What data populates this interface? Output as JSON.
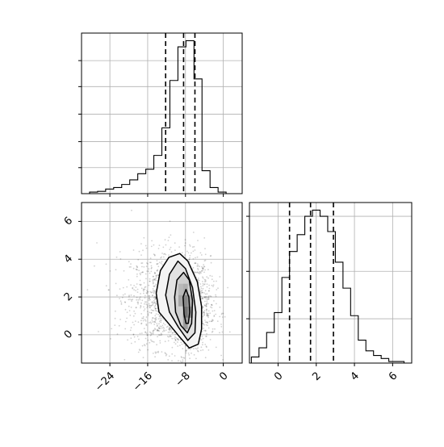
{
  "chart_data": [
    {
      "panel": "top-left",
      "type": "histogram",
      "variable_index": 0,
      "xlim": [
        -30,
        4
      ],
      "ylim": [
        0,
        1.05
      ],
      "bin_edges": [
        -30,
        -28.3,
        -26.6,
        -24.9,
        -23.2,
        -21.5,
        -19.8,
        -18.1,
        -16.4,
        -14.7,
        -13.0,
        -11.3,
        -9.6,
        -7.9,
        -6.2,
        -4.5,
        -2.8,
        -1.1,
        0.6,
        2.3
      ],
      "counts": [
        0.0,
        0.01,
        0.015,
        0.03,
        0.04,
        0.06,
        0.09,
        0.13,
        0.16,
        0.25,
        0.43,
        0.74,
        0.96,
        1.0,
        0.75,
        0.15,
        0.04,
        0.01,
        0.0
      ],
      "quantile_lines": [
        -12.2,
        -8.4,
        -6.0
      ],
      "xticks": [
        -24,
        -16,
        -8,
        0
      ],
      "yticks_relative": [
        0.17,
        0.34,
        0.52,
        0.7,
        0.87
      ],
      "grid": true,
      "tick_labels_shown": false
    },
    {
      "panel": "bottom-left",
      "type": "scatter-density",
      "x_variable": 0,
      "y_variable": 1,
      "xlim": [
        -30,
        4
      ],
      "ylim": [
        -1.5,
        7
      ],
      "xticks": [
        -24,
        -16,
        -8,
        0
      ],
      "xtick_labels": [
        "−24",
        "−16",
        "−8",
        "0"
      ],
      "yticks": [
        0,
        2,
        4,
        6
      ],
      "ytick_labels": [
        "0",
        "2",
        "4",
        "6"
      ],
      "grid": true,
      "scatter_center": [
        -9,
        1.7
      ],
      "scatter_spread": [
        4.2,
        1.3
      ],
      "contours": [
        [
          [
            -14.2,
            2.2
          ],
          [
            -13.3,
            3.4
          ],
          [
            -11.5,
            4.1
          ],
          [
            -9.2,
            4.3
          ],
          [
            -7.5,
            3.9
          ],
          [
            -5.5,
            2.8
          ],
          [
            -4.6,
            1.5
          ],
          [
            -4.6,
            0.3
          ],
          [
            -5.3,
            -0.5
          ],
          [
            -7.2,
            -0.7
          ],
          [
            -9.3,
            -0.1
          ],
          [
            -11.6,
            0.6
          ],
          [
            -13.6,
            1.2
          ]
        ],
        [
          [
            -12.2,
            2.1
          ],
          [
            -11.4,
            3.2
          ],
          [
            -9.6,
            3.9
          ],
          [
            -8.0,
            3.5
          ],
          [
            -6.5,
            2.5
          ],
          [
            -5.8,
            1.2
          ],
          [
            -6.0,
            0.1
          ],
          [
            -7.5,
            -0.3
          ],
          [
            -9.5,
            0.4
          ],
          [
            -11.4,
            1.2
          ]
        ],
        [
          [
            -10.3,
            2.0
          ],
          [
            -9.8,
            2.9
          ],
          [
            -8.4,
            3.3
          ],
          [
            -7.2,
            2.9
          ],
          [
            -6.5,
            1.8
          ],
          [
            -6.7,
            0.6
          ],
          [
            -7.6,
            0.1
          ],
          [
            -9.0,
            0.5
          ],
          [
            -10.1,
            1.2
          ]
        ],
        [
          [
            -8.5,
            2.0
          ],
          [
            -7.9,
            2.4
          ],
          [
            -7.3,
            2.0
          ],
          [
            -7.1,
            1.2
          ],
          [
            -7.4,
            0.6
          ],
          [
            -7.9,
            0.6
          ],
          [
            -8.3,
            1.1
          ]
        ]
      ],
      "density_cells": [
        {
          "x": -9.0,
          "y": 2.4,
          "level": 0.35
        },
        {
          "x": -8.0,
          "y": 2.4,
          "level": 0.4
        },
        {
          "x": -9.0,
          "y": 1.8,
          "level": 0.45
        },
        {
          "x": -8.0,
          "y": 1.8,
          "level": 0.6
        },
        {
          "x": -7.0,
          "y": 1.8,
          "level": 0.4
        },
        {
          "x": -8.0,
          "y": 1.2,
          "level": 0.7
        },
        {
          "x": -7.0,
          "y": 1.2,
          "level": 0.55
        },
        {
          "x": -8.0,
          "y": 0.6,
          "level": 0.5
        }
      ]
    },
    {
      "panel": "bottom-right",
      "type": "histogram",
      "variable_index": 1,
      "xlim": [
        -1.5,
        7
      ],
      "ylim": [
        0,
        1.05
      ],
      "bin_edges": [
        -1.4,
        -1.0,
        -0.6,
        -0.2,
        0.2,
        0.6,
        1.0,
        1.4,
        1.8,
        2.2,
        2.6,
        3.0,
        3.4,
        3.8,
        4.2,
        4.6,
        5.0,
        5.4,
        5.8,
        6.2,
        6.6
      ],
      "counts": [
        0.04,
        0.1,
        0.2,
        0.33,
        0.56,
        0.73,
        0.84,
        0.96,
        1.0,
        0.96,
        0.86,
        0.66,
        0.49,
        0.31,
        0.15,
        0.08,
        0.05,
        0.03,
        0.01,
        0.01
      ],
      "quantile_lines": [
        0.6,
        1.7,
        2.9
      ],
      "xticks": [
        0,
        2,
        4,
        6
      ],
      "xtick_labels": [
        "0",
        "2",
        "4",
        "6"
      ],
      "yticks_relative": [
        0.29,
        0.6,
        0.96
      ],
      "grid": true
    }
  ]
}
